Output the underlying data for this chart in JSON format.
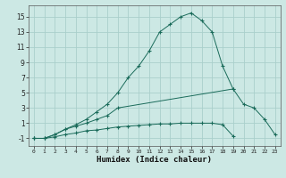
{
  "xlabel": "Humidex (Indice chaleur)",
  "background_color": "#cce8e4",
  "grid_color": "#aacfcb",
  "line_color": "#1a6b5a",
  "xlim": [
    -0.5,
    23.5
  ],
  "ylim": [
    -2,
    16.5
  ],
  "yticks": [
    -1,
    1,
    3,
    5,
    7,
    9,
    11,
    13,
    15
  ],
  "xticks": [
    0,
    1,
    2,
    3,
    4,
    5,
    6,
    7,
    8,
    9,
    10,
    11,
    12,
    13,
    14,
    15,
    16,
    17,
    18,
    19,
    20,
    21,
    22,
    23
  ],
  "line1_x": [
    0,
    1,
    2,
    3,
    4,
    5,
    6,
    7,
    8,
    9,
    10,
    11,
    12,
    13,
    14,
    15,
    16,
    17,
    18,
    19
  ],
  "line1_y": [
    -1,
    -1,
    -0.5,
    0.2,
    0.8,
    1.5,
    2.5,
    3.5,
    5,
    7,
    8.5,
    10.5,
    13,
    14,
    15,
    15.5,
    14.5,
    13,
    8.5,
    5.5
  ],
  "line2_x": [
    0,
    1,
    2,
    3,
    4,
    5,
    6,
    7,
    8,
    19,
    20,
    21,
    22,
    23
  ],
  "line2_y": [
    -1,
    -1,
    -0.5,
    0.2,
    0.6,
    1,
    1.5,
    2,
    3,
    5.5,
    3.5,
    3,
    1.5,
    -0.5
  ],
  "line3_x": [
    0,
    1,
    2,
    3,
    4,
    5,
    6,
    7,
    8,
    9,
    10,
    11,
    12,
    13,
    14,
    15,
    16,
    17,
    18,
    19
  ],
  "line3_y": [
    -1,
    -1,
    -0.8,
    -0.5,
    -0.3,
    0,
    0.1,
    0.3,
    0.5,
    0.6,
    0.7,
    0.8,
    0.9,
    0.9,
    1.0,
    1.0,
    1.0,
    1.0,
    0.8,
    -0.7
  ]
}
